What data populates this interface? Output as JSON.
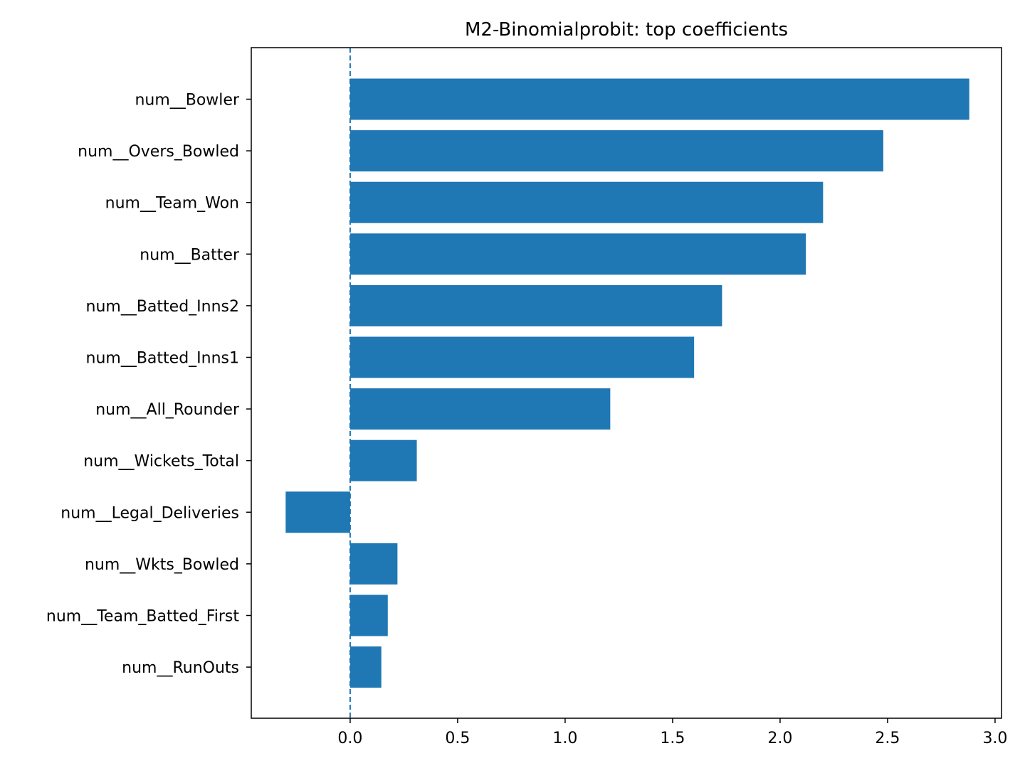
{
  "chart_data": {
    "type": "bar",
    "orientation": "horizontal",
    "title": "M2-Binomialprobit: top coefficients",
    "xlabel": "",
    "ylabel": "",
    "categories": [
      "num__Bowler",
      "num__Overs_Bowled",
      "num__Team_Won",
      "num__Batter",
      "num__Batted_Inns2",
      "num__Batted_Inns1",
      "num__All_Rounder",
      "num__Wickets_Total",
      "num__Legal_Deliveries",
      "num__Wkts_Bowled",
      "num__Team_Batted_First",
      "num__RunOuts"
    ],
    "values": [
      2.88,
      2.48,
      2.2,
      2.12,
      1.73,
      1.6,
      1.21,
      0.31,
      -0.3,
      0.22,
      0.175,
      0.145
    ],
    "xlim": [
      -0.46,
      3.03
    ],
    "xticks": [
      "0.0",
      "0.5",
      "1.0",
      "1.5",
      "2.0",
      "2.5",
      "3.0"
    ],
    "reference_line": {
      "x": 0,
      "style": "dashed"
    },
    "bar_color": "#1f77b4",
    "grid": false,
    "legend": "none"
  }
}
